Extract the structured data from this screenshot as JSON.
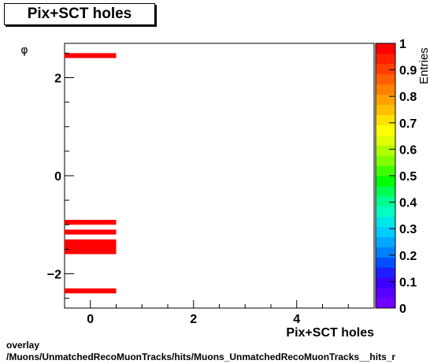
{
  "title": "Pix+SCT holes",
  "footer": {
    "line1": "overlay",
    "line2": "/Muons/UnmatchedRecoMuonTracks/hits/Muons_UnmatchedRecoMuonTracks__hits_r"
  },
  "chart_data": {
    "type": "heatmap",
    "xlabel": "Pix+SCT holes",
    "ylabel": "φ",
    "zlabel": "Entries",
    "xlim": [
      -0.5,
      5.5
    ],
    "ylim": [
      -2.7,
      2.7
    ],
    "zlim": [
      0,
      1
    ],
    "x_ticks": [
      0,
      2,
      4
    ],
    "y_ticks": [
      -2,
      0,
      2
    ],
    "z_ticks": [
      "0",
      "0.1",
      "0.2",
      "0.3",
      "0.4",
      "0.5",
      "0.6",
      "0.7",
      "0.8",
      "0.9",
      "1"
    ],
    "cells": [
      {
        "x0": -0.5,
        "x1": 0.5,
        "y0": 2.4,
        "y1": 2.5,
        "value": 1
      },
      {
        "x0": -0.5,
        "x1": 0.5,
        "y0": -1.0,
        "y1": -0.9,
        "value": 1
      },
      {
        "x0": -0.5,
        "x1": 0.5,
        "y0": -1.2,
        "y1": -1.1,
        "value": 1
      },
      {
        "x0": -0.5,
        "x1": 0.5,
        "y0": -1.6,
        "y1": -1.3,
        "value": 1
      },
      {
        "x0": -0.5,
        "x1": 0.5,
        "y0": -2.4,
        "y1": -2.3,
        "value": 1
      }
    ],
    "palette": [
      "#7000ff",
      "#5a00ff",
      "#3c00ff",
      "#1e1eff",
      "#0050ff",
      "#0080ff",
      "#00a8ff",
      "#00ccff",
      "#00e6e6",
      "#00ffc0",
      "#00ff90",
      "#00ff50",
      "#00ff00",
      "#40ff00",
      "#80ff00",
      "#b0ff00",
      "#e0ff00",
      "#ffff00",
      "#ffe000",
      "#ffc000",
      "#ffa000",
      "#ff8000",
      "#ff6000",
      "#ff4000",
      "#ff2000",
      "#ff0000"
    ],
    "cell_color": "#ff0000"
  }
}
